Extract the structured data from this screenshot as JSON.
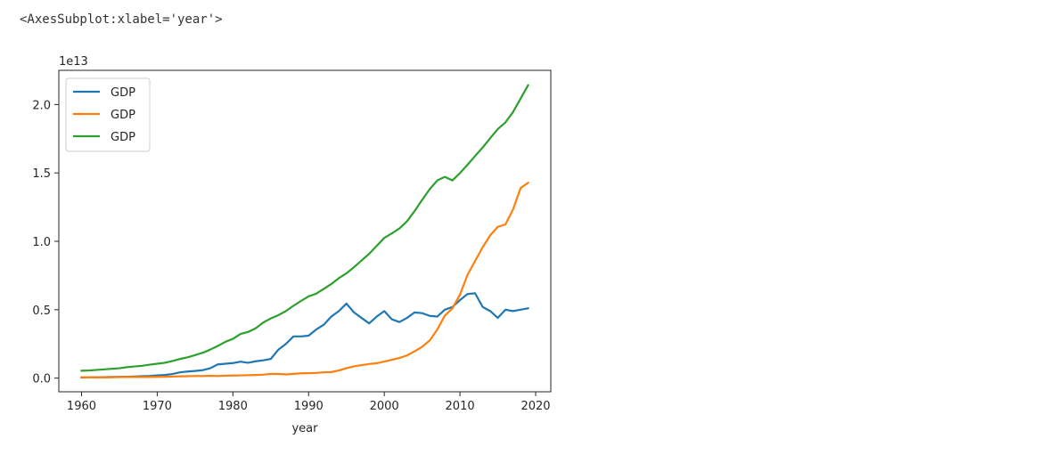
{
  "output_repr": "<AxesSubplot:xlabel='year'>",
  "chart_data": {
    "type": "line",
    "xlabel": "year",
    "ylabel": "",
    "offset_text": "1e13",
    "xlim": [
      1957,
      2022
    ],
    "ylim": [
      -0.1,
      2.25
    ],
    "xticks": [
      1960,
      1970,
      1980,
      1990,
      2000,
      2010,
      2020
    ],
    "yticks": [
      0.0,
      0.5,
      1.0,
      1.5,
      2.0
    ],
    "ytick_labels": [
      "0.0",
      "0.5",
      "1.0",
      "1.5",
      "2.0"
    ],
    "grid": false,
    "legend_placement": "upper-left",
    "x": [
      1960,
      1961,
      1962,
      1963,
      1964,
      1965,
      1966,
      1967,
      1968,
      1969,
      1970,
      1971,
      1972,
      1973,
      1974,
      1975,
      1976,
      1977,
      1978,
      1979,
      1980,
      1981,
      1982,
      1983,
      1984,
      1985,
      1986,
      1987,
      1988,
      1989,
      1990,
      1991,
      1992,
      1993,
      1994,
      1995,
      1996,
      1997,
      1998,
      1999,
      2000,
      2001,
      2002,
      2003,
      2004,
      2005,
      2006,
      2007,
      2008,
      2009,
      2010,
      2011,
      2012,
      2013,
      2014,
      2015,
      2016,
      2017,
      2018,
      2019
    ],
    "series": [
      {
        "name": "GDP",
        "color": "#1f77b4",
        "values": [
          0.004,
          0.005,
          0.006,
          0.007,
          0.008,
          0.009,
          0.01,
          0.012,
          0.014,
          0.016,
          0.02,
          0.023,
          0.03,
          0.042,
          0.048,
          0.052,
          0.058,
          0.072,
          0.1,
          0.105,
          0.11,
          0.12,
          0.112,
          0.123,
          0.13,
          0.14,
          0.208,
          0.25,
          0.305,
          0.305,
          0.31,
          0.355,
          0.39,
          0.45,
          0.49,
          0.545,
          0.48,
          0.44,
          0.4,
          0.45,
          0.49,
          0.43,
          0.41,
          0.44,
          0.48,
          0.475,
          0.455,
          0.45,
          0.5,
          0.52,
          0.57,
          0.615,
          0.62,
          0.52,
          0.49,
          0.44,
          0.5,
          0.49,
          0.5,
          0.51
        ]
      },
      {
        "name": "GDP",
        "color": "#ff7f0e",
        "values": [
          0.006,
          0.005,
          0.005,
          0.005,
          0.006,
          0.007,
          0.008,
          0.008,
          0.008,
          0.008,
          0.009,
          0.01,
          0.011,
          0.013,
          0.014,
          0.016,
          0.015,
          0.017,
          0.015,
          0.018,
          0.019,
          0.02,
          0.021,
          0.023,
          0.025,
          0.031,
          0.03,
          0.027,
          0.031,
          0.035,
          0.036,
          0.038,
          0.042,
          0.044,
          0.056,
          0.073,
          0.086,
          0.095,
          0.103,
          0.109,
          0.121,
          0.134,
          0.147,
          0.166,
          0.196,
          0.229,
          0.275,
          0.355,
          0.457,
          0.51,
          0.61,
          0.755,
          0.857,
          0.957,
          1.044,
          1.106,
          1.123,
          1.231,
          1.389,
          1.428
        ]
      },
      {
        "name": "GDP",
        "color": "#2ca02c",
        "values": [
          0.054,
          0.056,
          0.06,
          0.064,
          0.068,
          0.072,
          0.08,
          0.085,
          0.09,
          0.098,
          0.105,
          0.112,
          0.125,
          0.14,
          0.152,
          0.168,
          0.185,
          0.208,
          0.235,
          0.265,
          0.287,
          0.323,
          0.337,
          0.364,
          0.406,
          0.436,
          0.46,
          0.49,
          0.529,
          0.564,
          0.598,
          0.617,
          0.652,
          0.688,
          0.731,
          0.766,
          0.811,
          0.86,
          0.909,
          0.967,
          1.025,
          1.058,
          1.094,
          1.146,
          1.221,
          1.303,
          1.381,
          1.445,
          1.471,
          1.445,
          1.499,
          1.56,
          1.624,
          1.686,
          1.755,
          1.821,
          1.869,
          1.944,
          2.043,
          2.141
        ]
      }
    ]
  }
}
